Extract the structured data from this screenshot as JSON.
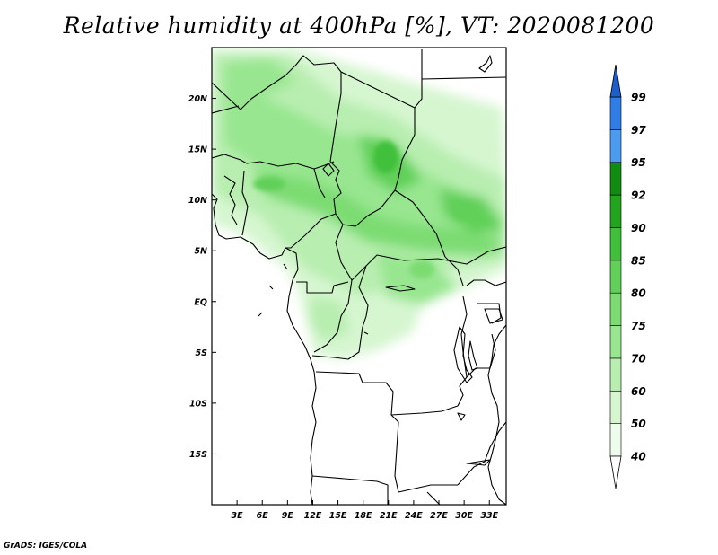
{
  "title": "Relative humidity at 400hPa [%], VT: 2020081200",
  "credit": "GrADS: IGES/COLA",
  "map": {
    "lon_labels": [
      "3E",
      "6E",
      "9E",
      "12E",
      "15E",
      "18E",
      "21E",
      "24E",
      "27E",
      "30E",
      "33E"
    ],
    "lat_labels": [
      "20N",
      "15N",
      "10N",
      "5N",
      "EQ",
      "5S",
      "10S",
      "15S"
    ],
    "lon_range_deg": [
      0,
      35
    ],
    "lat_range_deg": [
      -20,
      25
    ]
  },
  "colorbar": {
    "levels": [
      "40",
      "50",
      "60",
      "70",
      "75",
      "80",
      "85",
      "90",
      "92",
      "95",
      "97",
      "99"
    ],
    "colors": [
      "#eefcec",
      "#d6f6d0",
      "#b8eeb0",
      "#98e690",
      "#7cdc72",
      "#60d058",
      "#40c03a",
      "#22a41e",
      "#108c0e",
      "#4a9cf0",
      "#2e7ee6",
      "#1c5ecc"
    ]
  }
}
